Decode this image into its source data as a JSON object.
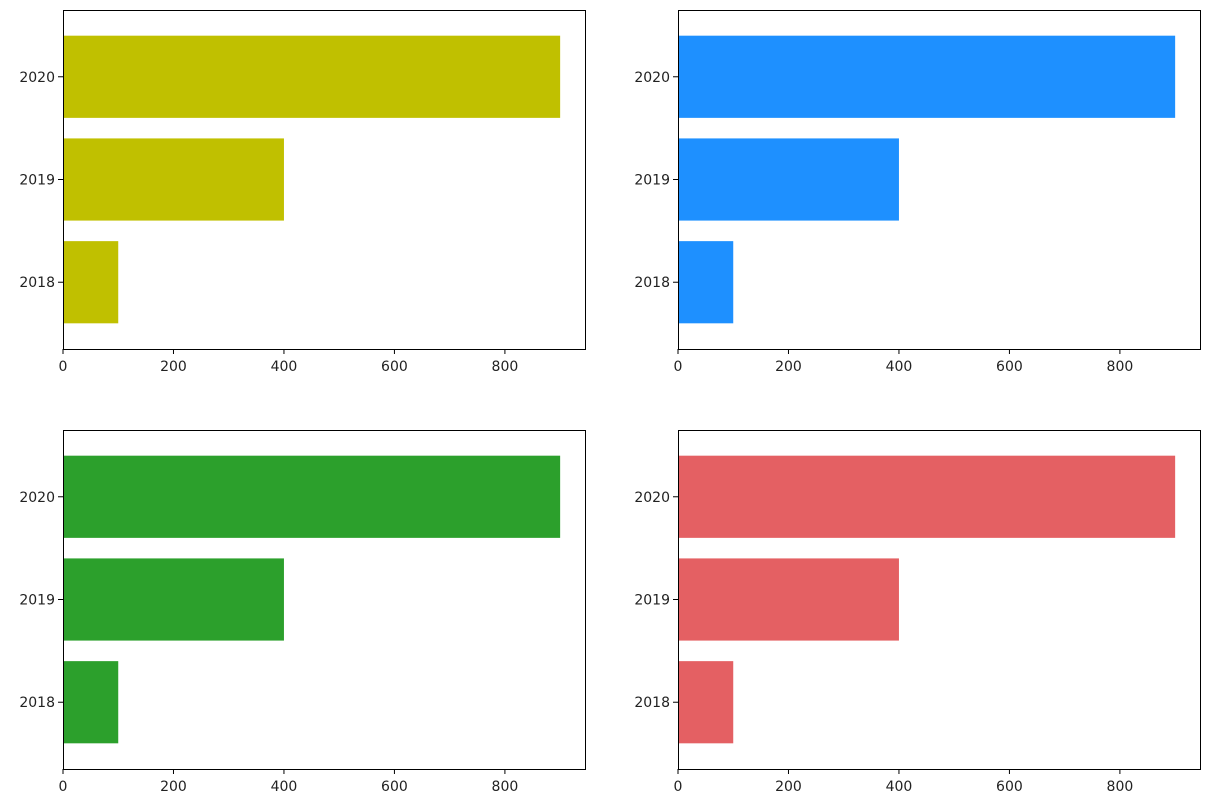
{
  "chart_data": [
    {
      "type": "bar",
      "orientation": "horizontal",
      "categories": [
        "2018",
        "2019",
        "2020"
      ],
      "values": [
        100,
        400,
        900
      ],
      "color": "#c0c000",
      "xlim": [
        0,
        945
      ],
      "xticks": [
        "0",
        "200",
        "400",
        "600",
        "800"
      ],
      "grid": false
    },
    {
      "type": "bar",
      "orientation": "horizontal",
      "categories": [
        "2018",
        "2019",
        "2020"
      ],
      "values": [
        100,
        400,
        900
      ],
      "color": "#1e90ff",
      "xlim": [
        0,
        945
      ],
      "xticks": [
        "0",
        "200",
        "400",
        "600",
        "800"
      ],
      "grid": false
    },
    {
      "type": "bar",
      "orientation": "horizontal",
      "categories": [
        "2018",
        "2019",
        "2020"
      ],
      "values": [
        100,
        400,
        900
      ],
      "color": "#2ca02c",
      "xlim": [
        0,
        945
      ],
      "xticks": [
        "0",
        "200",
        "400",
        "600",
        "800"
      ],
      "grid": false
    },
    {
      "type": "bar",
      "orientation": "horizontal",
      "categories": [
        "2018",
        "2019",
        "2020"
      ],
      "values": [
        100,
        400,
        900
      ],
      "color": "#e46063",
      "xlim": [
        0,
        945
      ],
      "xticks": [
        "0",
        "200",
        "400",
        "600",
        "800"
      ],
      "grid": false
    }
  ]
}
